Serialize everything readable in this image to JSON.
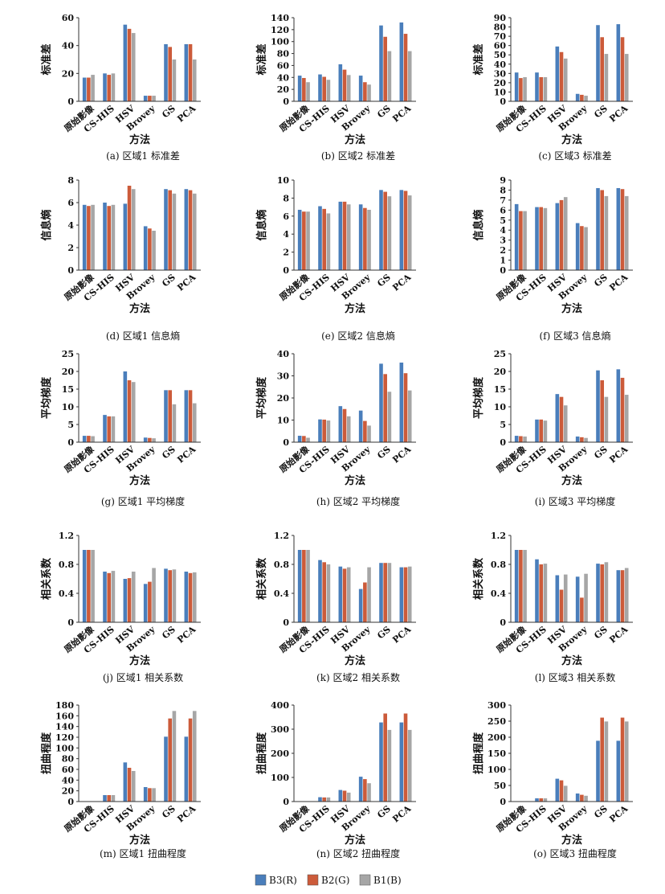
{
  "figure": {
    "legend": [
      {
        "label": "B3(R)",
        "color": "#4A7EBB"
      },
      {
        "label": "B2(G)",
        "color": "#CC5B3A"
      },
      {
        "label": "B1(B)",
        "color": "#A6A6A6"
      }
    ]
  },
  "chart_data": [
    {
      "type": "bar",
      "caption": "(a) 区域1 标准差",
      "xlabel": "方法",
      "ylabel": "标准差",
      "categories": [
        "原始影像",
        "CS-HIS",
        "HSV",
        "Brovey",
        "GS",
        "PCA"
      ],
      "ylim": [
        0,
        60
      ],
      "yticks": [
        0,
        20,
        40,
        60
      ],
      "series": [
        {
          "name": "B3(R)",
          "values": [
            17,
            20,
            55,
            4,
            41,
            41
          ]
        },
        {
          "name": "B2(G)",
          "values": [
            17,
            19,
            52,
            4,
            39,
            41
          ]
        },
        {
          "name": "B1(B)",
          "values": [
            19,
            20,
            49,
            4,
            30,
            30
          ]
        }
      ]
    },
    {
      "type": "bar",
      "caption": "(b) 区域2 标准差",
      "xlabel": "方法",
      "ylabel": "标准差",
      "categories": [
        "原始影像",
        "CS-HIS",
        "HSV",
        "Brovey",
        "GS",
        "PCA"
      ],
      "ylim": [
        0,
        140
      ],
      "yticks": [
        0,
        20,
        40,
        60,
        80,
        100,
        120,
        140
      ],
      "series": [
        {
          "name": "B3(R)",
          "values": [
            43,
            45,
            62,
            43,
            127,
            132
          ]
        },
        {
          "name": "B2(G)",
          "values": [
            39,
            41,
            53,
            32,
            108,
            113
          ]
        },
        {
          "name": "B1(B)",
          "values": [
            32,
            36,
            44,
            28,
            84,
            84
          ]
        }
      ]
    },
    {
      "type": "bar",
      "caption": "(c) 区域3 标准差",
      "xlabel": "方法",
      "ylabel": "标准差",
      "categories": [
        "原始影像",
        "CS-HIS",
        "HSV",
        "Brovey",
        "GS",
        "PCA"
      ],
      "ylim": [
        0,
        90
      ],
      "yticks": [
        0,
        10,
        20,
        30,
        40,
        50,
        60,
        70,
        80,
        90
      ],
      "series": [
        {
          "name": "B3(R)",
          "values": [
            31,
            31,
            59,
            8,
            82,
            83
          ]
        },
        {
          "name": "B2(G)",
          "values": [
            25,
            26,
            53,
            7,
            69,
            69
          ]
        },
        {
          "name": "B1(B)",
          "values": [
            26,
            26,
            46,
            6,
            51,
            51
          ]
        }
      ]
    },
    {
      "type": "bar",
      "caption": "(d) 区域1 信息熵",
      "xlabel": "方法",
      "ylabel": "信息熵",
      "categories": [
        "原始影像",
        "CS-HIS",
        "HSV",
        "Brovey",
        "GS",
        "PCA"
      ],
      "ylim": [
        0,
        8
      ],
      "yticks": [
        0,
        2,
        4,
        6,
        8
      ],
      "series": [
        {
          "name": "B3(R)",
          "values": [
            5.8,
            6.0,
            5.9,
            3.9,
            7.2,
            7.2
          ]
        },
        {
          "name": "B2(G)",
          "values": [
            5.7,
            5.7,
            7.5,
            3.7,
            7.1,
            7.1
          ]
        },
        {
          "name": "B1(B)",
          "values": [
            5.8,
            5.8,
            7.2,
            3.5,
            6.8,
            6.8
          ]
        }
      ]
    },
    {
      "type": "bar",
      "caption": "(e) 区域2 信息熵",
      "xlabel": "方法",
      "ylabel": "信息熵",
      "categories": [
        "原始影像",
        "CS-HIS",
        "HSV",
        "Brovey",
        "GS",
        "PCA"
      ],
      "ylim": [
        0,
        10
      ],
      "yticks": [
        0,
        2,
        4,
        6,
        8,
        10
      ],
      "series": [
        {
          "name": "B3(R)",
          "values": [
            6.7,
            7.1,
            7.6,
            7.3,
            8.9,
            8.9
          ]
        },
        {
          "name": "B2(G)",
          "values": [
            6.5,
            6.8,
            7.6,
            6.9,
            8.7,
            8.8
          ]
        },
        {
          "name": "B1(B)",
          "values": [
            6.5,
            6.3,
            7.3,
            6.7,
            8.2,
            8.3
          ]
        }
      ]
    },
    {
      "type": "bar",
      "caption": "(f) 区域3 信息熵",
      "xlabel": "方法",
      "ylabel": "信息熵",
      "categories": [
        "原始影像",
        "CS-HIS",
        "HSV",
        "Brovey",
        "GS",
        "PCA"
      ],
      "ylim": [
        0,
        9
      ],
      "yticks": [
        0,
        1,
        2,
        3,
        4,
        5,
        6,
        7,
        8,
        9
      ],
      "series": [
        {
          "name": "B3(R)",
          "values": [
            6.6,
            6.3,
            6.7,
            4.7,
            8.2,
            8.2
          ]
        },
        {
          "name": "B2(G)",
          "values": [
            5.9,
            6.3,
            7.0,
            4.4,
            8.0,
            8.1
          ]
        },
        {
          "name": "B1(B)",
          "values": [
            5.9,
            6.2,
            7.3,
            4.3,
            7.4,
            7.4
          ]
        }
      ]
    },
    {
      "type": "bar",
      "caption": "(g) 区域1 平均梯度",
      "xlabel": "方法",
      "ylabel": "平均梯度",
      "categories": [
        "原始影像",
        "CS-HIS",
        "HSV",
        "Brovey",
        "GS",
        "PCA"
      ],
      "ylim": [
        0,
        25
      ],
      "yticks": [
        0,
        5,
        10,
        15,
        20,
        25
      ],
      "series": [
        {
          "name": "B3(R)",
          "values": [
            1.8,
            7.7,
            20.0,
            1.3,
            14.7,
            14.7
          ]
        },
        {
          "name": "B2(G)",
          "values": [
            1.8,
            7.3,
            17.5,
            1.2,
            14.7,
            14.7
          ]
        },
        {
          "name": "B1(B)",
          "values": [
            1.7,
            7.3,
            17.0,
            1.1,
            10.7,
            11.0
          ]
        }
      ]
    },
    {
      "type": "bar",
      "caption": "(h) 区域2 平均梯度",
      "xlabel": "方法",
      "ylabel": "平均梯度",
      "categories": [
        "原始影像",
        "CS-HIS",
        "HSV",
        "Brovey",
        "GS",
        "PCA"
      ],
      "ylim": [
        0,
        40
      ],
      "yticks": [
        0,
        10,
        20,
        30,
        40
      ],
      "series": [
        {
          "name": "B3(R)",
          "values": [
            2.9,
            10.3,
            16.3,
            14.3,
            35.5,
            36.0
          ]
        },
        {
          "name": "B2(G)",
          "values": [
            2.8,
            10.2,
            15.0,
            9.6,
            30.8,
            31.2
          ]
        },
        {
          "name": "B1(B)",
          "values": [
            2.0,
            9.8,
            11.7,
            7.5,
            22.8,
            23.4
          ]
        }
      ]
    },
    {
      "type": "bar",
      "caption": "(i) 区域3 平均梯度",
      "xlabel": "方法",
      "ylabel": "平均梯度",
      "categories": [
        "原始影像",
        "CS-HIS",
        "HSV",
        "Brovey",
        "GS",
        "PCA"
      ],
      "ylim": [
        0,
        25
      ],
      "yticks": [
        0,
        5,
        10,
        15,
        20,
        25
      ],
      "series": [
        {
          "name": "B3(R)",
          "values": [
            1.8,
            6.4,
            13.6,
            1.6,
            20.3,
            20.6
          ]
        },
        {
          "name": "B2(G)",
          "values": [
            1.7,
            6.4,
            12.8,
            1.4,
            17.5,
            18.2
          ]
        },
        {
          "name": "B1(B)",
          "values": [
            1.6,
            6.1,
            10.4,
            1.2,
            12.8,
            13.4
          ]
        }
      ]
    },
    {
      "type": "bar",
      "caption": "(j) 区域1 相关系数",
      "xlabel": "方法",
      "ylabel": "相关系数",
      "categories": [
        "原始影像",
        "CS-HIS",
        "HSV",
        "Brovey",
        "GS",
        "PCA"
      ],
      "ylim": [
        0,
        1.2
      ],
      "yticks": [
        "0",
        "0.4",
        "0.8",
        "1.2"
      ],
      "series": [
        {
          "name": "B3(R)",
          "values": [
            1.0,
            0.7,
            0.6,
            0.53,
            0.74,
            0.7
          ]
        },
        {
          "name": "B2(G)",
          "values": [
            1.0,
            0.68,
            0.61,
            0.56,
            0.72,
            0.68
          ]
        },
        {
          "name": "B1(B)",
          "values": [
            1.0,
            0.71,
            0.7,
            0.75,
            0.73,
            0.69
          ]
        }
      ]
    },
    {
      "type": "bar",
      "caption": "(k) 区域2 相关系数",
      "xlabel": "方法",
      "ylabel": "相关系数",
      "categories": [
        "原始影像",
        "CS-HIS",
        "HSV",
        "Brovey",
        "GS",
        "PCA"
      ],
      "ylim": [
        0,
        1.2
      ],
      "yticks": [
        "0",
        "0.4",
        "0.8",
        "1.2"
      ],
      "series": [
        {
          "name": "B3(R)",
          "values": [
            1.0,
            0.86,
            0.77,
            0.46,
            0.82,
            0.76
          ]
        },
        {
          "name": "B2(G)",
          "values": [
            1.0,
            0.83,
            0.74,
            0.55,
            0.82,
            0.76
          ]
        },
        {
          "name": "B1(B)",
          "values": [
            1.0,
            0.8,
            0.76,
            0.76,
            0.82,
            0.77
          ]
        }
      ]
    },
    {
      "type": "bar",
      "caption": "(l) 区域3 相关系数",
      "xlabel": "方法",
      "ylabel": "相关系数",
      "categories": [
        "原始影像",
        "CS-HIS",
        "HSV",
        "Brovey",
        "GS",
        "PCA"
      ],
      "ylim": [
        0,
        1.2
      ],
      "yticks": [
        "0",
        "0.4",
        "0.8",
        "1.2"
      ],
      "series": [
        {
          "name": "B3(R)",
          "values": [
            1.0,
            0.87,
            0.65,
            0.63,
            0.81,
            0.72
          ]
        },
        {
          "name": "B2(G)",
          "values": [
            1.0,
            0.8,
            0.45,
            0.34,
            0.8,
            0.72
          ]
        },
        {
          "name": "B1(B)",
          "values": [
            1.0,
            0.81,
            0.66,
            0.67,
            0.83,
            0.75
          ]
        }
      ]
    },
    {
      "type": "bar",
      "caption": "(m) 区域1 扭曲程度",
      "xlabel": "方法",
      "ylabel": "扭曲程度",
      "categories": [
        "原始影像",
        "CS-HIS",
        "HSV",
        "Brovey",
        "GS",
        "PCA"
      ],
      "ylim": [
        0,
        180
      ],
      "yticks": [
        0,
        20,
        40,
        60,
        80,
        100,
        120,
        140,
        160,
        180
      ],
      "series": [
        {
          "name": "B3(R)",
          "values": [
            0,
            12,
            73,
            27,
            121,
            121
          ]
        },
        {
          "name": "B2(G)",
          "values": [
            0,
            12,
            63,
            25,
            155,
            155
          ]
        },
        {
          "name": "B1(B)",
          "values": [
            0,
            12,
            57,
            25,
            169,
            169
          ]
        }
      ]
    },
    {
      "type": "bar",
      "caption": "(n) 区域2 扭曲程度",
      "xlabel": "方法",
      "ylabel": "扭曲程度",
      "categories": [
        "原始影像",
        "CS-HIS",
        "HSV",
        "Brovey",
        "GS",
        "PCA"
      ],
      "ylim": [
        0,
        400
      ],
      "yticks": [
        0,
        100,
        200,
        300,
        400
      ],
      "series": [
        {
          "name": "B3(R)",
          "values": [
            0,
            18,
            48,
            103,
            328,
            328
          ]
        },
        {
          "name": "B2(G)",
          "values": [
            0,
            17,
            45,
            93,
            365,
            365
          ]
        },
        {
          "name": "B1(B)",
          "values": [
            0,
            17,
            37,
            76,
            297,
            297
          ]
        }
      ]
    },
    {
      "type": "bar",
      "caption": "(o) 区域3 扭曲程度",
      "xlabel": "方法",
      "ylabel": "扭曲程度",
      "categories": [
        "原始影像",
        "CS-HIS",
        "HSV",
        "Brovey",
        "GS",
        "PCA"
      ],
      "ylim": [
        0,
        300
      ],
      "yticks": [
        0,
        50,
        100,
        150,
        200,
        250,
        300
      ],
      "series": [
        {
          "name": "B3(R)",
          "values": [
            0,
            10,
            71,
            25,
            189,
            189
          ]
        },
        {
          "name": "B2(G)",
          "values": [
            0,
            10,
            66,
            21,
            261,
            261
          ]
        },
        {
          "name": "B1(B)",
          "values": [
            0,
            10,
            49,
            18,
            249,
            249
          ]
        }
      ]
    }
  ]
}
